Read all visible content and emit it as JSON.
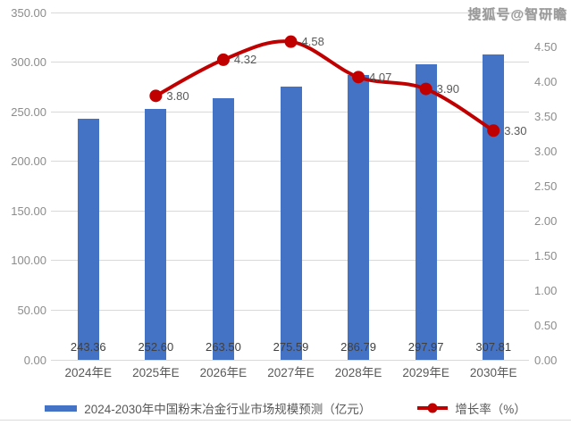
{
  "watermark": "搜狐号@智研瞻",
  "legend": {
    "bars": "2024-2030年中国粉末冶金行业市场规模预测（亿元）",
    "line": "增长率（%）"
  },
  "colors": {
    "bar": "#4472c4",
    "line": "#c00000",
    "grid": "#d9d9d9",
    "tick_text": "#8c8c8c",
    "label_text": "#595959"
  },
  "chart_data": {
    "type": "bar",
    "subtype": "bar+line-combo",
    "title": "2024-2030年中国粉末冶金行业市场规模预测（亿元）",
    "categories": [
      "2024年E",
      "2025年E",
      "2026年E",
      "2027年E",
      "2028年E",
      "2029年E",
      "2030年E"
    ],
    "series": [
      {
        "name": "2024-2030年中国粉末冶金行业市场规模预测（亿元）",
        "type": "bar",
        "axis": "left",
        "values": [
          243.36,
          252.6,
          263.5,
          275.59,
          286.79,
          297.97,
          307.81
        ]
      },
      {
        "name": "增长率（%）",
        "type": "line",
        "axis": "right",
        "x_indices": [
          1,
          2,
          3,
          4,
          5,
          6
        ],
        "values": [
          3.8,
          4.32,
          4.58,
          4.07,
          3.9,
          3.3
        ]
      }
    ],
    "bar_labels": [
      "243.36",
      "252.60",
      "263.50",
      "275.59",
      "286.79",
      "297.97",
      "307.81"
    ],
    "line_labels": [
      "3.80",
      "4.32",
      "4.58",
      "4.07",
      "3.90",
      "3.30"
    ],
    "left_axis": {
      "min": 0,
      "max": 350,
      "step": 50,
      "tick_labels": [
        "350.00",
        "300.00",
        "250.00",
        "200.00",
        "150.00",
        "100.00",
        "50.00",
        "0.00"
      ]
    },
    "right_axis": {
      "min": 0,
      "max": 5,
      "step": 0.5,
      "tick_labels": [
        "4.50",
        "4.00",
        "3.50",
        "3.00",
        "2.50",
        "2.00",
        "1.50",
        "1.00",
        "0.50",
        "0.00"
      ]
    },
    "grid": true,
    "legend_position": "bottom"
  }
}
